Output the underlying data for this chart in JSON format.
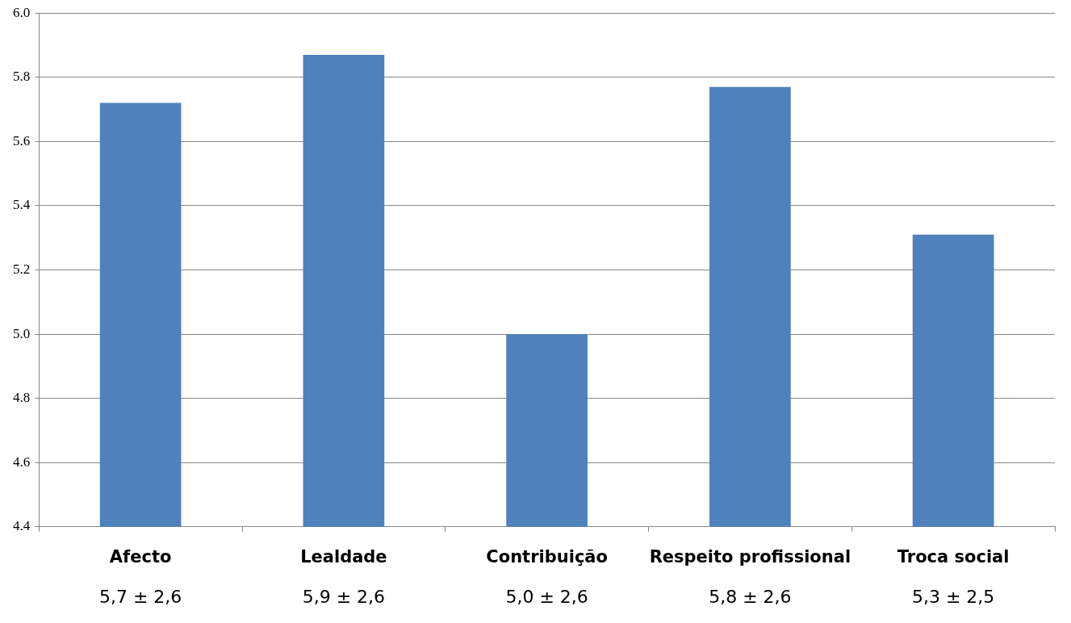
{
  "chart_data": {
    "type": "bar",
    "categories": [
      "Afecto",
      "Lealdade",
      "Contribuição",
      "Respeito profissional",
      "Troca social"
    ],
    "values": [
      5.72,
      5.87,
      5.0,
      5.77,
      5.31
    ],
    "value_labels": [
      "5,7 ± 2,6",
      "5,9 ± 2,6",
      "5,0 ± 2,6",
      "5,8 ± 2,6",
      "5,3 ± 2,5"
    ],
    "color": "#4f81bd",
    "ylim": [
      4.4,
      6.0
    ],
    "yticks": [
      4.4,
      4.6,
      4.8,
      {
        "value": 5.0,
        "label": "5.0"
      },
      5.2,
      5.4,
      5.6,
      5.8,
      {
        "value": 6.0,
        "label": "6.0"
      }
    ],
    "grid": "y"
  }
}
